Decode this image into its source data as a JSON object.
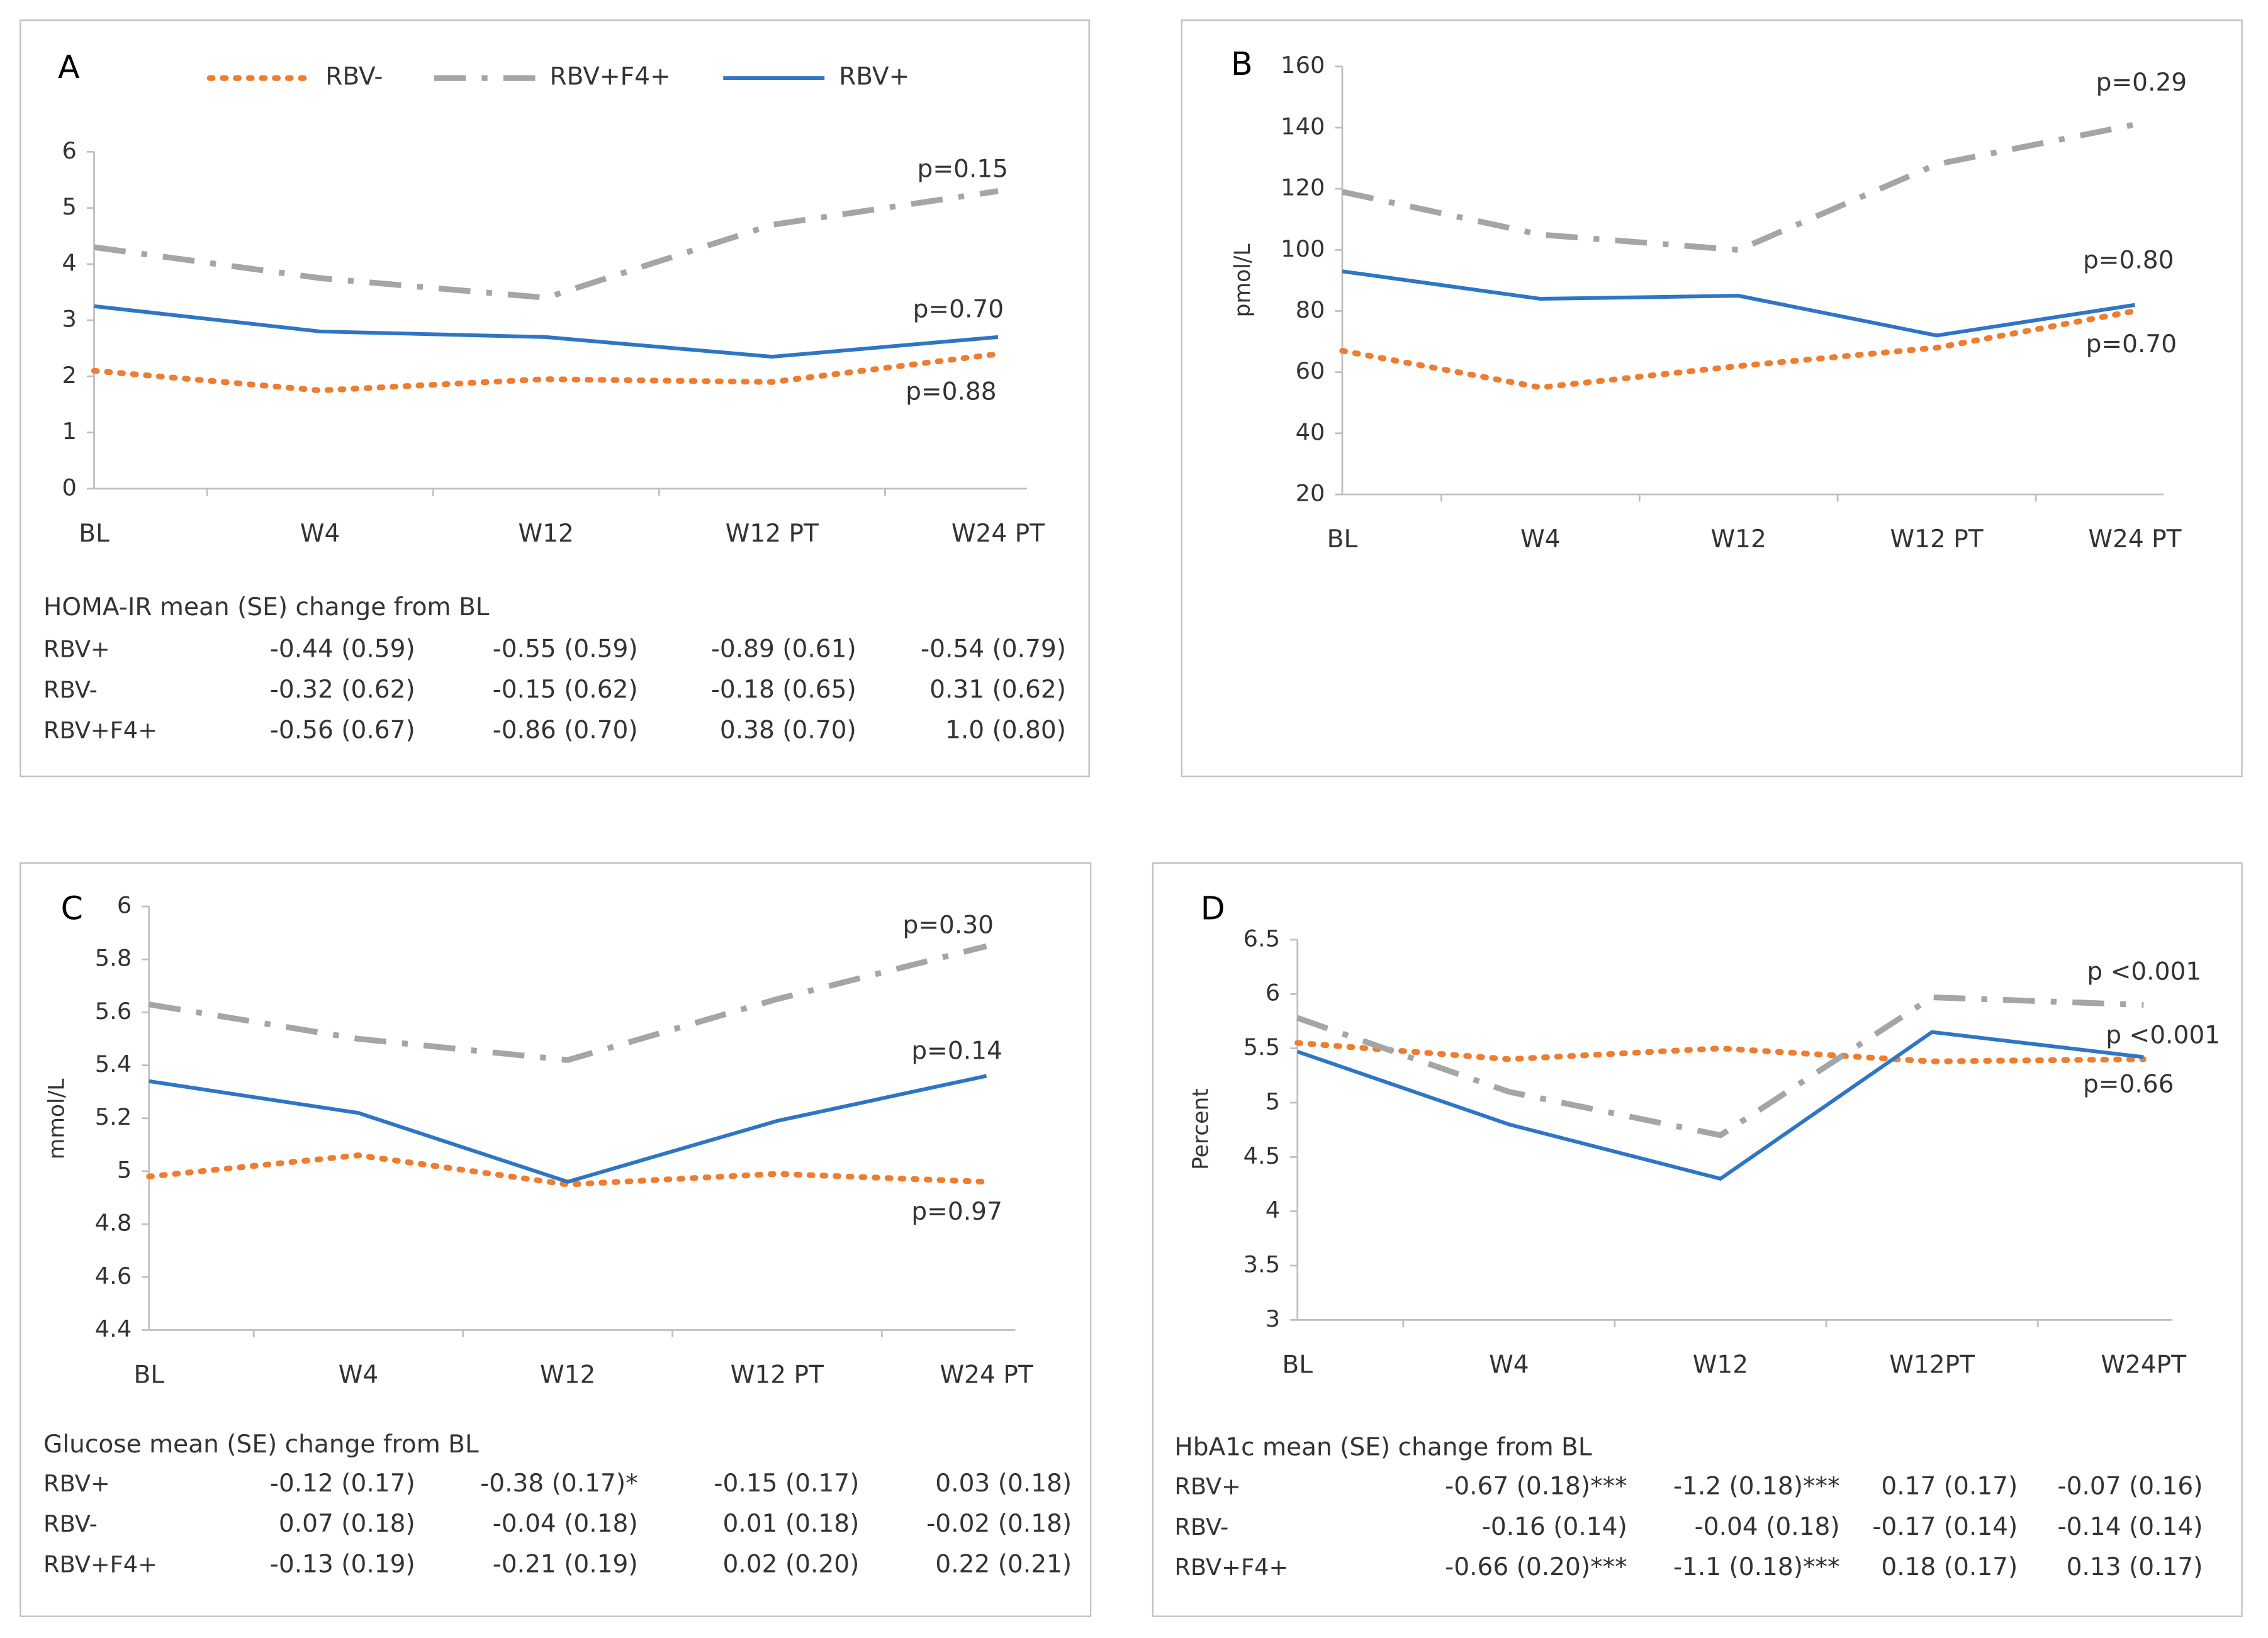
{
  "chart_data": [
    {
      "type": "line",
      "label": "A",
      "categories": [
        "BL",
        "W4",
        "W12",
        "W12 PT",
        "W24 PT"
      ],
      "series": [
        {
          "name": "RBV-",
          "color": "#ED7D31",
          "values": [
            2.1,
            1.75,
            1.95,
            1.9,
            2.4
          ]
        },
        {
          "name": "RBV+F4+",
          "color": "#A5A5A5",
          "values": [
            4.3,
            3.75,
            3.4,
            4.7,
            5.3
          ]
        },
        {
          "name": "RBV+",
          "color": "#2E75C6",
          "values": [
            3.25,
            2.8,
            2.7,
            2.35,
            2.7
          ]
        }
      ],
      "ylim": [
        0,
        6
      ],
      "yticks": [
        0,
        1,
        2,
        3,
        4,
        5,
        6
      ],
      "annotations": [
        "p=0.15",
        "p=0.70",
        "p=0.88"
      ],
      "table": {
        "title": "HOMA-IR mean (SE) change from BL",
        "rows": [
          [
            "RBV+",
            "-0.44 (0.59)",
            "-0.55 (0.59)",
            "-0.89 (0.61)",
            "-0.54 (0.79)"
          ],
          [
            "RBV-",
            "-0.32 (0.62)",
            "-0.15 (0.62)",
            "-0.18 (0.65)",
            "0.31 (0.62)"
          ],
          [
            "RBV+F4+",
            "-0.56  (0.67)",
            "-0.86 (0.70)",
            "0.38 (0.70)",
            "1.0 (0.80)"
          ]
        ]
      }
    },
    {
      "type": "line",
      "label": "B",
      "y_label": "pmol/L",
      "categories": [
        "BL",
        "W4",
        "W12",
        "W12 PT",
        "W24 PT"
      ],
      "series": [
        {
          "color": "#ED7D31",
          "values": [
            67,
            55,
            62,
            68,
            80
          ]
        },
        {
          "color": "#A5A5A5",
          "values": [
            119,
            105,
            100,
            128,
            141
          ]
        },
        {
          "color": "#2E75C6",
          "values": [
            93,
            84,
            85,
            72,
            82
          ]
        }
      ],
      "ylim": [
        20,
        160
      ],
      "yticks": [
        20,
        40,
        60,
        80,
        100,
        120,
        140,
        160
      ],
      "annotations": [
        "p=0.29",
        "p=0.80",
        "p=0.70"
      ]
    },
    {
      "type": "line",
      "label": "C",
      "y_label": "mmol/L",
      "categories": [
        "BL",
        "W4",
        "W12",
        "W12 PT",
        "W24 PT"
      ],
      "series": [
        {
          "color": "#ED7D31",
          "values": [
            4.98,
            5.06,
            4.95,
            4.99,
            4.96
          ]
        },
        {
          "color": "#A5A5A5",
          "values": [
            5.63,
            5.5,
            5.42,
            5.65,
            5.85
          ]
        },
        {
          "color": "#2E75C6",
          "values": [
            5.34,
            5.22,
            4.96,
            5.19,
            5.36
          ]
        }
      ],
      "ylim": [
        4.4,
        6
      ],
      "yticks": [
        4.4,
        4.6,
        4.8,
        5,
        5.2,
        5.4,
        5.6,
        5.8,
        6
      ],
      "annotations": [
        "p=0.30",
        "p=0.14",
        "p=0.97"
      ],
      "table": {
        "title": "Glucose mean (SE) change from BL",
        "rows": [
          [
            "RBV+",
            "-0.12 (0.17)",
            "-0.38 (0.17)*",
            "-0.15 (0.17)",
            "0.03 (0.18)"
          ],
          [
            "RBV-",
            "0.07 (0.18)",
            "-0.04 (0.18)",
            "0.01 (0.18)",
            "-0.02 (0.18)"
          ],
          [
            "RBV+F4+",
            "-0.13  (0.19)",
            "-0.21 (0.19)",
            "0.02 (0.20)",
            "0.22 (0.21)"
          ]
        ]
      }
    },
    {
      "type": "line",
      "label": "D",
      "y_label": "Percent",
      "categories": [
        "BL",
        "W4",
        "W12",
        "W12PT",
        "W24PT"
      ],
      "series": [
        {
          "color": "#ED7D31",
          "values": [
            5.55,
            5.4,
            5.5,
            5.38,
            5.4
          ]
        },
        {
          "color": "#A5A5A5",
          "values": [
            5.78,
            5.1,
            4.7,
            5.97,
            5.9
          ]
        },
        {
          "color": "#2E75C6",
          "values": [
            5.47,
            4.8,
            4.3,
            5.65,
            5.42
          ]
        }
      ],
      "ylim": [
        3,
        6.5
      ],
      "yticks": [
        3,
        3.5,
        4,
        4.5,
        5,
        5.5,
        6,
        6.5
      ],
      "annotations": [
        "p <0.001",
        "p <0.001",
        "p=0.66"
      ],
      "table": {
        "title": "HbA1c mean (SE) change from BL",
        "rows": [
          [
            "RBV+",
            "-0.67 (0.18)***",
            "-1.2 (0.18)***",
            "0.17 (0.17)",
            "-0.07 (0.16)"
          ],
          [
            "RBV-",
            "-0.16 (0.14)",
            "-0.04 (0.18)",
            "-0.17 (0.14)",
            "-0.14 (0.14)"
          ],
          [
            "RBV+F4+",
            "-0.66  (0.20)***",
            "-1.1 (0.18)***",
            "0.18 (0.17)",
            "0.13 (0.17)"
          ]
        ]
      }
    }
  ]
}
